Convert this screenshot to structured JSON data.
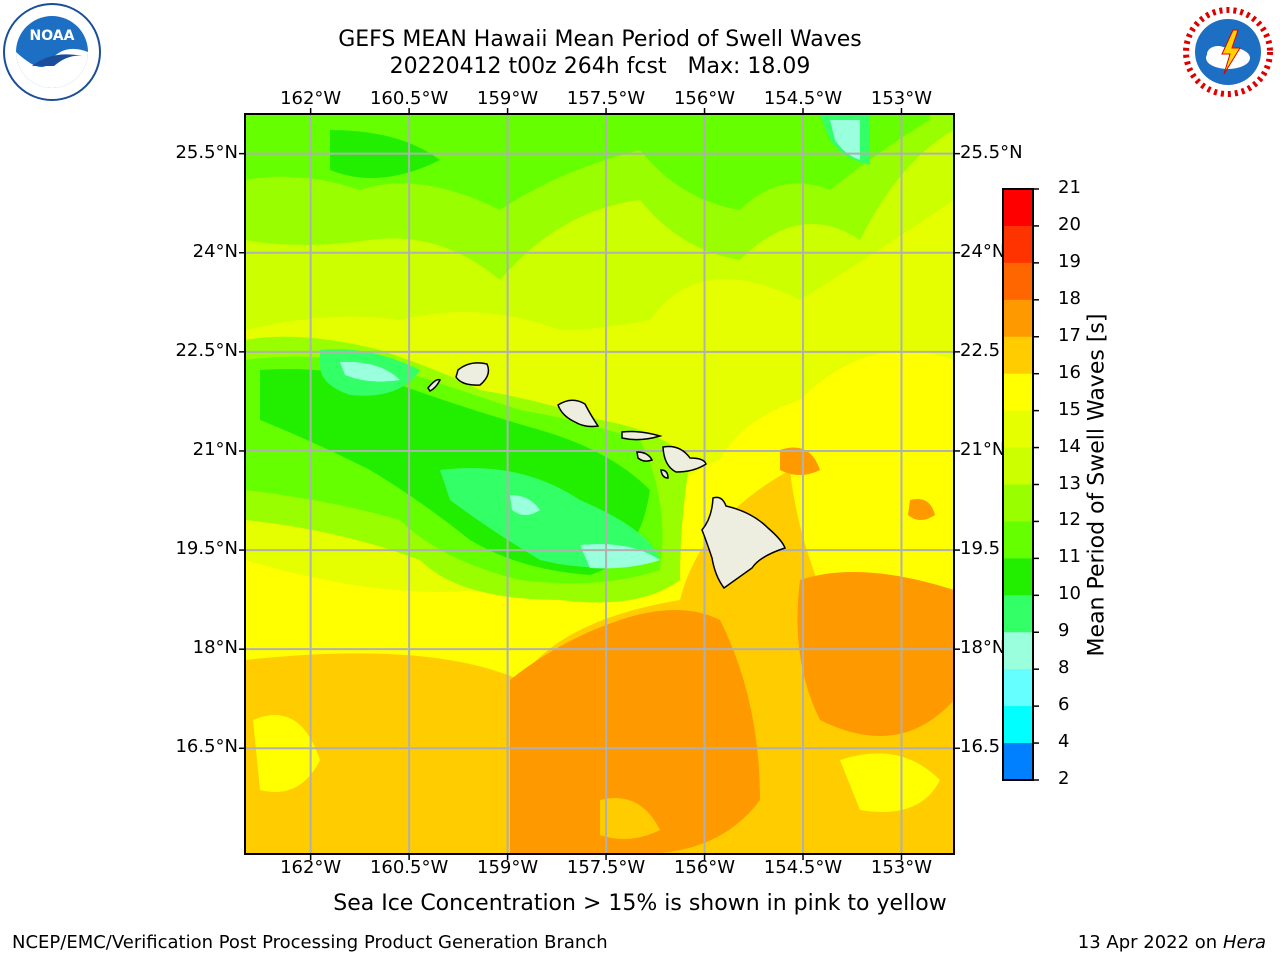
{
  "title": {
    "line1": "GEFS MEAN Hawaii Mean Period of Swell Waves",
    "line2": "20220412 t00z 264h fcst   Max: 18.09"
  },
  "axes": {
    "lon_labels": [
      "162°W",
      "160.5°W",
      "159°W",
      "157.5°W",
      "156°W",
      "154.5°W",
      "153°W"
    ],
    "lat_labels": [
      "25.5°N",
      "24°N",
      "22.5°N",
      "21°N",
      "19.5°N",
      "18°N",
      "16.5°N"
    ],
    "lat_labels_right": [
      "25.5°N",
      "24°N",
      "22.5",
      "21°N",
      "19.5",
      "18°N",
      "16.5"
    ]
  },
  "colorbar": {
    "title": "Mean Period of Swell Waves [s]",
    "ticks": [
      "21",
      "20",
      "19",
      "18",
      "17",
      "16",
      "15",
      "14",
      "13",
      "12",
      "11",
      "10",
      "9",
      "8",
      "6",
      "4",
      "2"
    ],
    "colors": [
      "#ff0000",
      "#ff3300",
      "#ff6600",
      "#ff9900",
      "#ffcc00",
      "#ffff00",
      "#e6ff00",
      "#ccff00",
      "#99ff00",
      "#66ff00",
      "#22ee00",
      "#33ff66",
      "#99ffdd",
      "#66ffff",
      "#00ffff",
      "#0080ff",
      "#0000ff"
    ]
  },
  "note": "Sea Ice Concentration > 15% is shown in pink to yellow",
  "footer": {
    "left": "NCEP/EMC/Verification Post Processing Product Generation Branch",
    "right_date": "13 Apr 2022 on ",
    "right_host": "Hera"
  },
  "logos": {
    "left": "NOAA",
    "right": "NATIONAL WEATHER SERVICE"
  },
  "chart_data": {
    "type": "heatmap",
    "variable": "Mean Period of Swell Waves [s]",
    "max_value": 18.09,
    "xlim": [
      -163.0,
      -152.2
    ],
    "ylim": [
      14.9,
      26.1
    ],
    "x_ticks": [
      -162,
      -160.5,
      -159,
      -157.5,
      -156,
      -154.5,
      -153
    ],
    "y_ticks": [
      25.5,
      24,
      22.5,
      21,
      19.5,
      18,
      16.5
    ],
    "grid": true,
    "colorbar_levels": [
      2,
      4,
      6,
      8,
      9,
      10,
      11,
      12,
      13,
      14,
      15,
      16,
      17,
      18,
      19,
      20,
      21
    ]
  }
}
